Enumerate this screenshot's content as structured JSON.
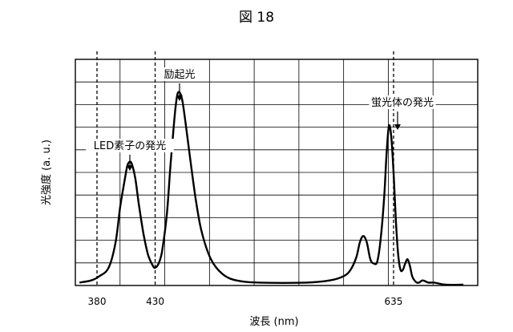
{
  "figure_label": "図 18",
  "chart_data": {
    "type": "line",
    "title": "",
    "xlabel": "波長 (nm)",
    "ylabel": "光強度 (a. u.)",
    "x_ticks": [
      380,
      430,
      635
    ],
    "xlim": [
      360,
      700
    ],
    "ylim": [
      0,
      1
    ],
    "grid": true,
    "reference_lines_x": [
      380,
      430,
      635
    ],
    "series": [
      {
        "x": [
          365,
          375,
          382,
          390,
          396,
          400,
          404,
          406,
          408,
          410,
          413,
          416,
          420,
          424,
          428,
          430,
          433,
          436,
          440,
          443,
          446,
          448,
          450,
          453,
          456,
          460,
          465,
          470,
          478,
          488,
          500,
          520,
          560,
          580,
          592,
          598,
          603,
          606,
          609,
          612,
          615,
          618,
          621,
          624,
          627,
          629,
          631,
          633,
          635,
          637,
          639,
          641,
          643,
          645,
          647,
          649,
          651,
          653,
          655,
          657,
          660,
          665,
          670,
          680,
          695
        ],
        "y": [
          0.01,
          0.02,
          0.04,
          0.08,
          0.2,
          0.37,
          0.5,
          0.56,
          0.58,
          0.57,
          0.5,
          0.38,
          0.24,
          0.14,
          0.09,
          0.08,
          0.1,
          0.16,
          0.33,
          0.55,
          0.75,
          0.86,
          0.91,
          0.88,
          0.77,
          0.6,
          0.4,
          0.25,
          0.12,
          0.05,
          0.02,
          0.01,
          0.01,
          0.02,
          0.04,
          0.07,
          0.13,
          0.2,
          0.23,
          0.2,
          0.12,
          0.1,
          0.11,
          0.22,
          0.42,
          0.62,
          0.75,
          0.7,
          0.53,
          0.3,
          0.14,
          0.07,
          0.07,
          0.1,
          0.12,
          0.09,
          0.04,
          0.02,
          0.01,
          0.01,
          0.02,
          0.01,
          0.01,
          0.0,
          0.0
        ]
      }
    ],
    "annotations": [
      {
        "text": "LED素子の発光",
        "x": 408,
        "y": 0.58
      },
      {
        "text": "励起光",
        "x": 450,
        "y": 0.91
      },
      {
        "text": "蛍光体の発光",
        "x": 637,
        "y": 0.75
      }
    ]
  }
}
